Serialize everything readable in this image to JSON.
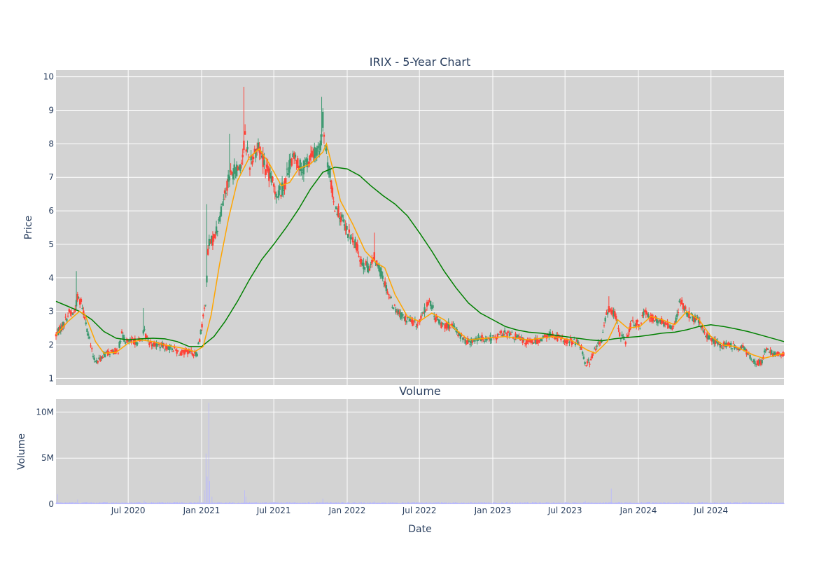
{
  "colors": {
    "plot_bg": "#d3d3d3",
    "grid": "#ffffff",
    "text": "#2a3f5f",
    "increasing": "#3d9970",
    "decreasing": "#ff4136",
    "ma_short": "#ffa500",
    "ma_long": "#008000",
    "volume_bar": "#b8b8ff"
  },
  "chart_data": [
    {
      "type": "candlestick",
      "title": "IRIX - 5-Year Chart",
      "ylabel": "Price",
      "ylim": [
        0.8,
        10.2
      ],
      "yticks": [
        1,
        2,
        3,
        4,
        5,
        6,
        7,
        8,
        9,
        10
      ],
      "x_range": [
        "2020-01-02",
        "2024-12-31"
      ],
      "grid": true,
      "price_path": [
        [
          "2020-01-02",
          2.3
        ],
        [
          "2020-01-20",
          2.6
        ],
        [
          "2020-02-05",
          3.0
        ],
        [
          "2020-02-15",
          2.9
        ],
        [
          "2020-02-25",
          3.4
        ],
        [
          "2020-03-05",
          3.3
        ],
        [
          "2020-03-15",
          2.8
        ],
        [
          "2020-03-25",
          2.2
        ],
        [
          "2020-04-05",
          1.6
        ],
        [
          "2020-04-15",
          1.5
        ],
        [
          "2020-05-01",
          1.7
        ],
        [
          "2020-05-20",
          1.8
        ],
        [
          "2020-06-05",
          1.8
        ],
        [
          "2020-06-15",
          2.3
        ],
        [
          "2020-06-25",
          2.1
        ],
        [
          "2020-07-15",
          2.1
        ],
        [
          "2020-08-01",
          2.1
        ],
        [
          "2020-08-10",
          2.4
        ],
        [
          "2020-08-20",
          2.1
        ],
        [
          "2020-09-10",
          2.0
        ],
        [
          "2020-10-01",
          1.95
        ],
        [
          "2020-10-20",
          1.9
        ],
        [
          "2020-11-10",
          1.75
        ],
        [
          "2020-12-01",
          1.8
        ],
        [
          "2020-12-20",
          1.7
        ],
        [
          "2020-12-30",
          2.4
        ],
        [
          "2021-01-05",
          2.8
        ],
        [
          "2021-01-12",
          3.4
        ],
        [
          "2021-01-18",
          5.0
        ],
        [
          "2021-01-28",
          5.1
        ],
        [
          "2021-02-10",
          5.5
        ],
        [
          "2021-02-25",
          6.4
        ],
        [
          "2021-03-10",
          7.0
        ],
        [
          "2021-03-25",
          7.2
        ],
        [
          "2021-04-10",
          7.4
        ],
        [
          "2021-04-20",
          8.2
        ],
        [
          "2021-05-01",
          7.4
        ],
        [
          "2021-05-15",
          7.8
        ],
        [
          "2021-05-25",
          7.9
        ],
        [
          "2021-06-10",
          7.3
        ],
        [
          "2021-06-25",
          6.9
        ],
        [
          "2021-07-10",
          6.5
        ],
        [
          "2021-07-25",
          6.7
        ],
        [
          "2021-08-10",
          7.4
        ],
        [
          "2021-08-25",
          7.6
        ],
        [
          "2021-09-10",
          7.2
        ],
        [
          "2021-09-25",
          7.5
        ],
        [
          "2021-10-10",
          7.7
        ],
        [
          "2021-10-25",
          7.8
        ],
        [
          "2021-11-01",
          8.7
        ],
        [
          "2021-11-08",
          7.8
        ],
        [
          "2021-11-20",
          7.0
        ],
        [
          "2021-11-28",
          6.2
        ],
        [
          "2021-12-10",
          6.0
        ],
        [
          "2021-12-25",
          5.5
        ],
        [
          "2022-01-10",
          5.2
        ],
        [
          "2022-01-25",
          4.9
        ],
        [
          "2022-02-10",
          4.4
        ],
        [
          "2022-02-25",
          4.3
        ],
        [
          "2022-03-10",
          4.6
        ],
        [
          "2022-03-25",
          4.2
        ],
        [
          "2022-04-10",
          3.7
        ],
        [
          "2022-04-25",
          3.2
        ],
        [
          "2022-05-10",
          2.95
        ],
        [
          "2022-05-25",
          2.8
        ],
        [
          "2022-06-10",
          2.7
        ],
        [
          "2022-06-25",
          2.6
        ],
        [
          "2022-07-10",
          2.9
        ],
        [
          "2022-07-25",
          3.3
        ],
        [
          "2022-08-01",
          3.2
        ],
        [
          "2022-08-10",
          2.8
        ],
        [
          "2022-08-25",
          2.6
        ],
        [
          "2022-09-10",
          2.6
        ],
        [
          "2022-09-25",
          2.5
        ],
        [
          "2022-10-10",
          2.3
        ],
        [
          "2022-10-25",
          2.1
        ],
        [
          "2022-11-10",
          2.1
        ],
        [
          "2022-11-25",
          2.2
        ],
        [
          "2022-12-15",
          2.2
        ],
        [
          "2023-01-05",
          2.2
        ],
        [
          "2023-01-25",
          2.35
        ],
        [
          "2023-02-15",
          2.3
        ],
        [
          "2023-03-05",
          2.2
        ],
        [
          "2023-03-25",
          2.1
        ],
        [
          "2023-04-15",
          2.1
        ],
        [
          "2023-05-05",
          2.2
        ],
        [
          "2023-05-25",
          2.3
        ],
        [
          "2023-06-15",
          2.2
        ],
        [
          "2023-07-05",
          2.1
        ],
        [
          "2023-07-25",
          2.1
        ],
        [
          "2023-08-10",
          2.0
        ],
        [
          "2023-08-20",
          1.45
        ],
        [
          "2023-09-01",
          1.5
        ],
        [
          "2023-09-15",
          1.9
        ],
        [
          "2023-10-01",
          2.1
        ],
        [
          "2023-10-10",
          2.8
        ],
        [
          "2023-10-20",
          3.1
        ],
        [
          "2023-11-05",
          2.9
        ],
        [
          "2023-11-15",
          2.3
        ],
        [
          "2023-12-01",
          2.1
        ],
        [
          "2023-12-15",
          2.7
        ],
        [
          "2024-01-05",
          2.6
        ],
        [
          "2024-01-15",
          3.0
        ],
        [
          "2024-02-01",
          2.8
        ],
        [
          "2024-02-20",
          2.75
        ],
        [
          "2024-03-10",
          2.6
        ],
        [
          "2024-03-25",
          2.5
        ],
        [
          "2024-04-05",
          2.8
        ],
        [
          "2024-04-15",
          3.3
        ],
        [
          "2024-04-25",
          3.1
        ],
        [
          "2024-05-15",
          2.8
        ],
        [
          "2024-06-01",
          2.7
        ],
        [
          "2024-06-15",
          2.3
        ],
        [
          "2024-07-01",
          2.2
        ],
        [
          "2024-07-20",
          2.0
        ],
        [
          "2024-08-10",
          2.0
        ],
        [
          "2024-09-01",
          1.95
        ],
        [
          "2024-09-20",
          1.9
        ],
        [
          "2024-10-10",
          1.6
        ],
        [
          "2024-10-25",
          1.45
        ],
        [
          "2024-11-05",
          1.5
        ],
        [
          "2024-11-15",
          1.85
        ],
        [
          "2024-12-01",
          1.75
        ],
        [
          "2024-12-31",
          1.7
        ]
      ],
      "spikes": [
        [
          "2020-02-25",
          4.2
        ],
        [
          "2020-08-10",
          3.1
        ],
        [
          "2021-01-18",
          6.2
        ],
        [
          "2021-03-15",
          8.3
        ],
        [
          "2021-04-20",
          9.7
        ],
        [
          "2021-11-01",
          9.4
        ],
        [
          "2022-03-10",
          5.35
        ],
        [
          "2023-10-25",
          3.45
        ]
      ],
      "ma_short_path": [
        [
          "2020-01-02",
          2.3
        ],
        [
          "2020-02-01",
          2.7
        ],
        [
          "2020-03-01",
          3.0
        ],
        [
          "2020-03-15",
          2.9
        ],
        [
          "2020-04-10",
          2.1
        ],
        [
          "2020-05-01",
          1.75
        ],
        [
          "2020-06-01",
          1.78
        ],
        [
          "2020-07-01",
          2.05
        ],
        [
          "2020-08-01",
          2.15
        ],
        [
          "2020-09-01",
          2.1
        ],
        [
          "2020-10-01",
          2.0
        ],
        [
          "2020-11-15",
          1.9
        ],
        [
          "2020-12-15",
          1.8
        ],
        [
          "2021-01-05",
          1.95
        ],
        [
          "2021-01-25",
          2.9
        ],
        [
          "2021-02-15",
          4.4
        ],
        [
          "2021-03-10",
          5.8
        ],
        [
          "2021-04-01",
          6.9
        ],
        [
          "2021-05-01",
          7.6
        ],
        [
          "2021-05-25",
          7.85
        ],
        [
          "2021-06-20",
          7.4
        ],
        [
          "2021-07-20",
          6.75
        ],
        [
          "2021-08-10",
          6.85
        ],
        [
          "2021-09-01",
          7.25
        ],
        [
          "2021-10-01",
          7.4
        ],
        [
          "2021-11-01",
          7.75
        ],
        [
          "2021-11-10",
          8.0
        ],
        [
          "2021-11-25",
          7.3
        ],
        [
          "2021-12-15",
          6.3
        ],
        [
          "2022-01-15",
          5.6
        ],
        [
          "2022-02-15",
          4.8
        ],
        [
          "2022-03-15",
          4.45
        ],
        [
          "2022-04-05",
          4.3
        ],
        [
          "2022-05-01",
          3.5
        ],
        [
          "2022-06-01",
          2.85
        ],
        [
          "2022-07-01",
          2.7
        ],
        [
          "2022-08-01",
          2.95
        ],
        [
          "2022-09-01",
          2.75
        ],
        [
          "2022-10-01",
          2.45
        ],
        [
          "2022-11-01",
          2.15
        ],
        [
          "2022-12-15",
          2.2
        ],
        [
          "2023-02-01",
          2.25
        ],
        [
          "2023-04-01",
          2.15
        ],
        [
          "2023-06-01",
          2.25
        ],
        [
          "2023-07-15",
          2.15
        ],
        [
          "2023-08-25",
          1.85
        ],
        [
          "2023-09-15",
          1.75
        ],
        [
          "2023-10-15",
          2.1
        ],
        [
          "2023-11-10",
          2.75
        ],
        [
          "2023-12-05",
          2.5
        ],
        [
          "2024-01-05",
          2.55
        ],
        [
          "2024-02-01",
          2.85
        ],
        [
          "2024-03-01",
          2.75
        ],
        [
          "2024-04-01",
          2.6
        ],
        [
          "2024-05-01",
          3.0
        ],
        [
          "2024-06-01",
          2.75
        ],
        [
          "2024-07-01",
          2.25
        ],
        [
          "2024-08-01",
          2.0
        ],
        [
          "2024-09-01",
          1.95
        ],
        [
          "2024-10-15",
          1.7
        ],
        [
          "2024-11-10",
          1.6
        ],
        [
          "2024-12-31",
          1.75
        ]
      ],
      "ma_long_path": [
        [
          "2020-01-02",
          3.3
        ],
        [
          "2020-02-01",
          3.15
        ],
        [
          "2020-03-01",
          3.0
        ],
        [
          "2020-04-01",
          2.75
        ],
        [
          "2020-05-01",
          2.4
        ],
        [
          "2020-06-01",
          2.2
        ],
        [
          "2020-07-01",
          2.15
        ],
        [
          "2020-08-01",
          2.18
        ],
        [
          "2020-09-01",
          2.2
        ],
        [
          "2020-10-01",
          2.18
        ],
        [
          "2020-11-01",
          2.1
        ],
        [
          "2020-12-01",
          1.95
        ],
        [
          "2021-01-01",
          1.95
        ],
        [
          "2021-02-01",
          2.25
        ],
        [
          "2021-03-01",
          2.7
        ],
        [
          "2021-04-01",
          3.3
        ],
        [
          "2021-05-01",
          3.95
        ],
        [
          "2021-06-01",
          4.55
        ],
        [
          "2021-07-01",
          5.0
        ],
        [
          "2021-08-01",
          5.5
        ],
        [
          "2021-09-01",
          6.05
        ],
        [
          "2021-10-01",
          6.65
        ],
        [
          "2021-11-01",
          7.15
        ],
        [
          "2021-12-01",
          7.3
        ],
        [
          "2022-01-01",
          7.25
        ],
        [
          "2022-02-01",
          7.05
        ],
        [
          "2022-03-01",
          6.75
        ],
        [
          "2022-04-01",
          6.45
        ],
        [
          "2022-05-01",
          6.2
        ],
        [
          "2022-06-01",
          5.85
        ],
        [
          "2022-07-01",
          5.35
        ],
        [
          "2022-08-01",
          4.8
        ],
        [
          "2022-09-01",
          4.2
        ],
        [
          "2022-10-01",
          3.7
        ],
        [
          "2022-11-01",
          3.25
        ],
        [
          "2022-12-01",
          2.95
        ],
        [
          "2023-01-01",
          2.75
        ],
        [
          "2023-02-01",
          2.55
        ],
        [
          "2023-03-01",
          2.45
        ],
        [
          "2023-04-01",
          2.38
        ],
        [
          "2023-05-01",
          2.35
        ],
        [
          "2023-06-01",
          2.3
        ],
        [
          "2023-07-01",
          2.25
        ],
        [
          "2023-08-01",
          2.2
        ],
        [
          "2023-09-01",
          2.15
        ],
        [
          "2023-10-01",
          2.12
        ],
        [
          "2023-11-01",
          2.18
        ],
        [
          "2023-12-01",
          2.22
        ],
        [
          "2024-01-01",
          2.25
        ],
        [
          "2024-02-01",
          2.3
        ],
        [
          "2024-03-01",
          2.35
        ],
        [
          "2024-04-01",
          2.38
        ],
        [
          "2024-05-01",
          2.45
        ],
        [
          "2024-06-01",
          2.55
        ],
        [
          "2024-07-01",
          2.6
        ],
        [
          "2024-08-01",
          2.55
        ],
        [
          "2024-09-01",
          2.48
        ],
        [
          "2024-10-01",
          2.4
        ],
        [
          "2024-11-01",
          2.3
        ],
        [
          "2024-12-31",
          2.1
        ]
      ]
    },
    {
      "type": "bar",
      "title": "Volume",
      "ylabel": "Volume",
      "xlabel": "Date",
      "ylim": [
        0,
        11400000
      ],
      "yticks": [
        {
          "value": 0,
          "label": "0"
        },
        {
          "value": 5000000,
          "label": "5M"
        },
        {
          "value": 10000000,
          "label": "10M"
        }
      ],
      "xticks": [
        {
          "date": "2020-07-01",
          "label": "Jul 2020"
        },
        {
          "date": "2021-01-01",
          "label": "Jan 2021"
        },
        {
          "date": "2021-07-01",
          "label": "Jul 2021"
        },
        {
          "date": "2022-01-01",
          "label": "Jan 2022"
        },
        {
          "date": "2022-07-01",
          "label": "Jul 2022"
        },
        {
          "date": "2023-01-01",
          "label": "Jan 2023"
        },
        {
          "date": "2023-07-01",
          "label": "Jul 2023"
        },
        {
          "date": "2024-01-01",
          "label": "Jan 2024"
        },
        {
          "date": "2024-07-01",
          "label": "Jul 2024"
        }
      ],
      "baseline": 150000,
      "volume_spikes": [
        [
          "2020-01-06",
          1100000
        ],
        [
          "2020-02-25",
          500000
        ],
        [
          "2020-08-10",
          400000
        ],
        [
          "2020-12-28",
          900000
        ],
        [
          "2021-01-08",
          1500000
        ],
        [
          "2021-01-12",
          5500000
        ],
        [
          "2021-01-15",
          3000000
        ],
        [
          "2021-01-19",
          11000000
        ],
        [
          "2021-01-21",
          2500000
        ],
        [
          "2021-01-27",
          800000
        ],
        [
          "2021-04-19",
          1500000
        ],
        [
          "2021-04-22",
          800000
        ],
        [
          "2021-11-01",
          600000
        ],
        [
          "2022-03-10",
          300000
        ],
        [
          "2023-08-21",
          350000
        ],
        [
          "2023-10-25",
          1700000
        ],
        [
          "2024-04-15",
          300000
        ]
      ]
    }
  ]
}
